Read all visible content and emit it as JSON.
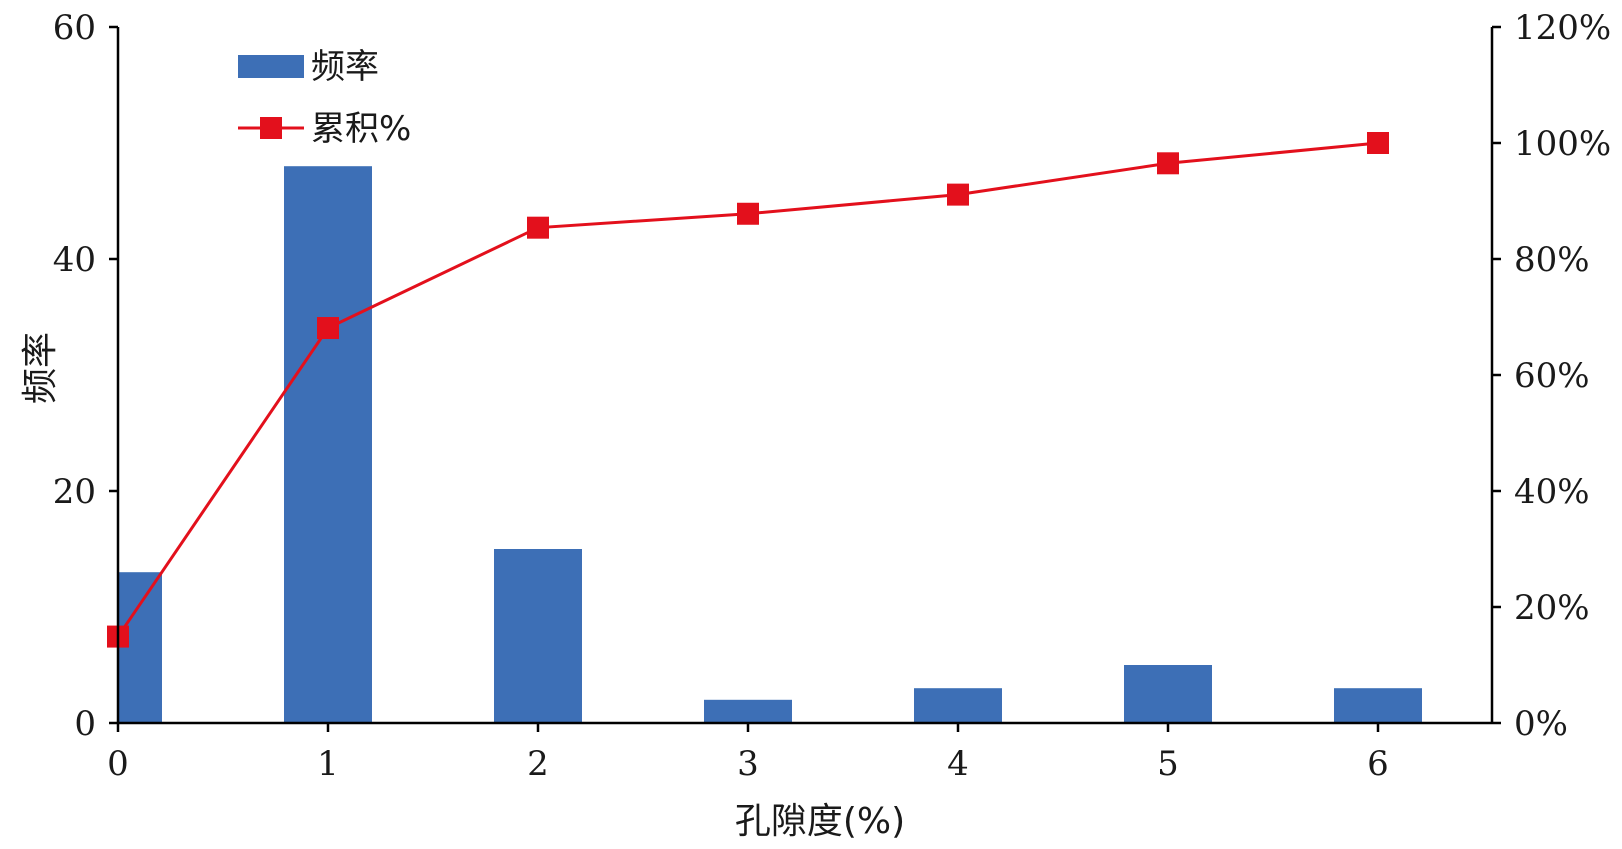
{
  "chart_data": {
    "type": "bar",
    "title": "",
    "xlabel": "孔隙度(%)",
    "ylabel": "频率",
    "categories": [
      "0",
      "1",
      "2",
      "3",
      "4",
      "5",
      "6"
    ],
    "x": [
      0,
      1,
      2,
      3,
      4,
      5,
      6
    ],
    "ylim": [
      0,
      60
    ],
    "y2lim": [
      0,
      120
    ],
    "yticks": [
      "0",
      "20",
      "40",
      "60"
    ],
    "y2ticks": [
      "0%",
      "20%",
      "40%",
      "60%",
      "80%",
      "100%",
      "120%"
    ],
    "grid": false,
    "legend_position": "top-left",
    "series": [
      {
        "name": "频率",
        "type": "bar",
        "axis": "left",
        "color": "#3d6fb6",
        "values": [
          13,
          48,
          15,
          2,
          3,
          5,
          3
        ]
      },
      {
        "name": "累积%",
        "type": "line",
        "axis": "right",
        "color": "#e3101c",
        "marker": "square",
        "values": [
          14.9,
          68.1,
          85.4,
          87.8,
          91.1,
          96.5,
          100
        ]
      }
    ]
  }
}
